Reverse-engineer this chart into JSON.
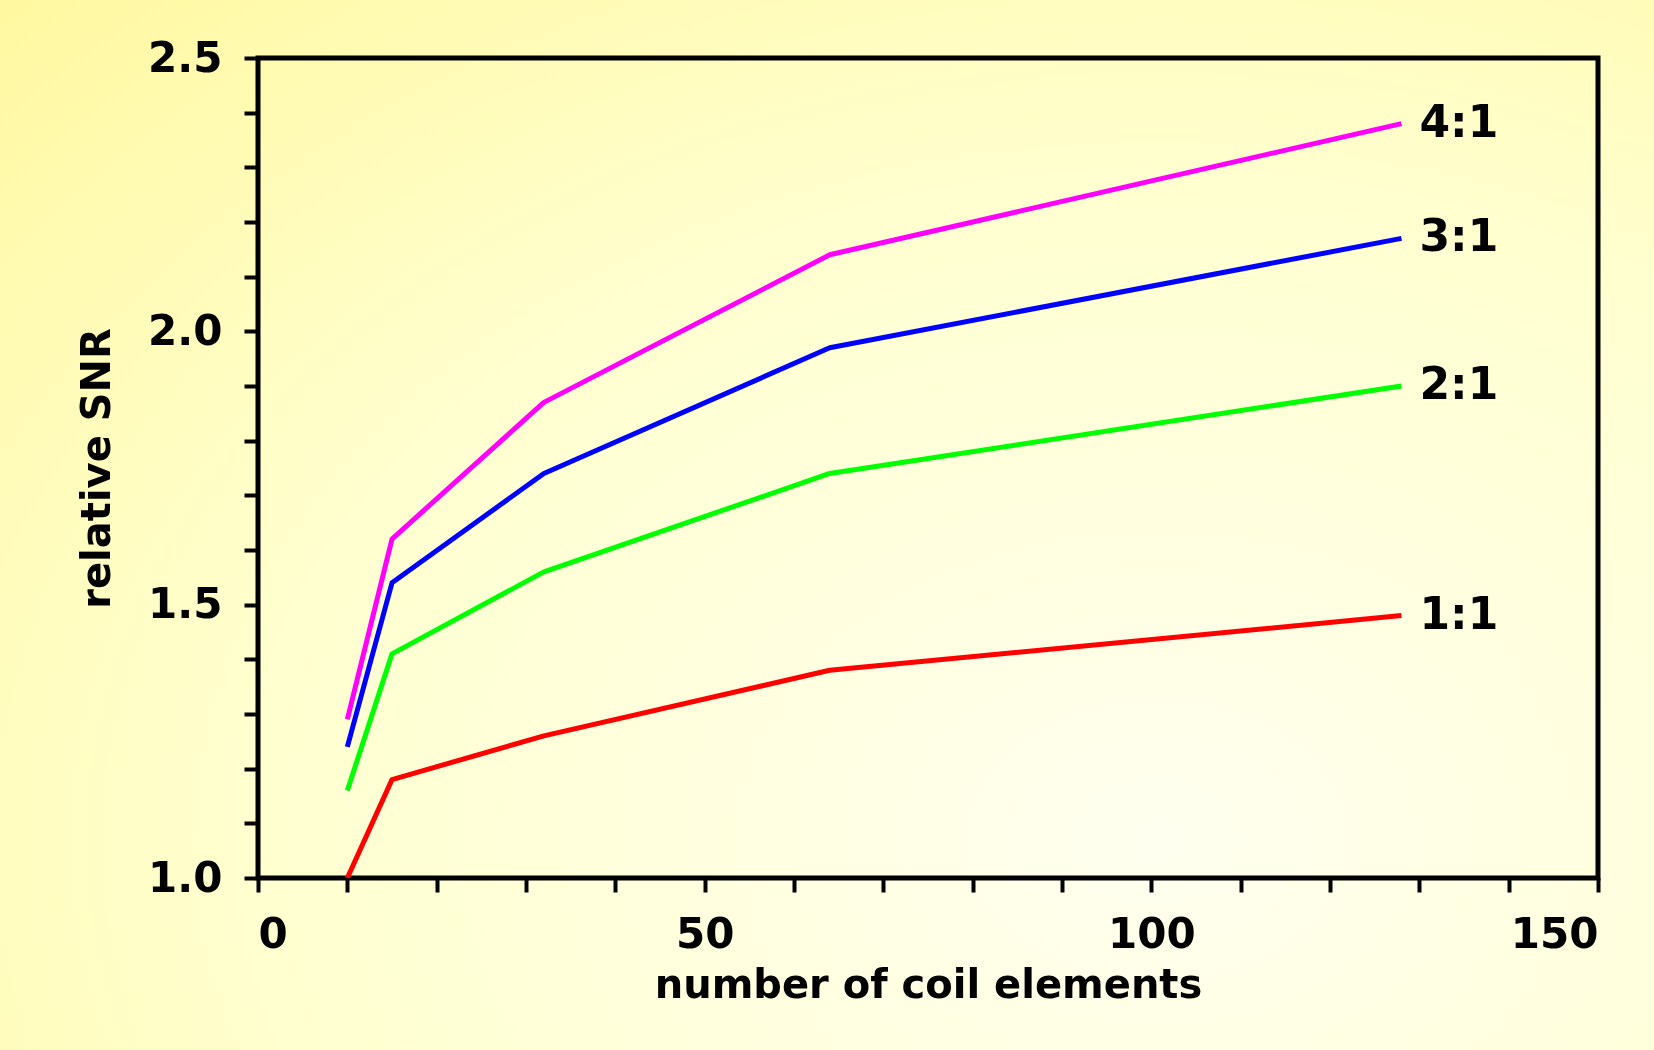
{
  "chart_data": {
    "type": "line",
    "xlabel": "number of coil elements",
    "ylabel": "relative SNR",
    "x": [
      10,
      15,
      32,
      64,
      128
    ],
    "series": [
      {
        "name": "1:1",
        "color": "#ff0000",
        "values": [
          1.0,
          1.18,
          1.26,
          1.38,
          1.48
        ]
      },
      {
        "name": "2:1",
        "color": "#00ff00",
        "values": [
          1.16,
          1.41,
          1.56,
          1.74,
          1.9
        ]
      },
      {
        "name": "3:1",
        "color": "#0000ff",
        "values": [
          1.24,
          1.54,
          1.74,
          1.97,
          2.17
        ]
      },
      {
        "name": "4:1",
        "color": "#ff00ff",
        "values": [
          1.29,
          1.62,
          1.87,
          2.14,
          2.38
        ]
      }
    ],
    "xlim": [
      0,
      150
    ],
    "xticks": [
      0,
      {
        "value": 10,
        "label": null
      },
      {
        "value": 20,
        "label": null
      },
      {
        "value": 30,
        "label": null
      },
      {
        "value": 40,
        "label": null
      },
      50,
      {
        "value": 60,
        "label": null
      },
      {
        "value": 70,
        "label": null
      },
      {
        "value": 80,
        "label": null
      },
      {
        "value": 90,
        "label": null
      },
      100,
      {
        "value": 110,
        "label": null
      },
      {
        "value": 120,
        "label": null
      },
      {
        "value": 130,
        "label": null
      },
      {
        "value": 140,
        "label": null
      },
      150
    ],
    "ylim": [
      1.0,
      2.5
    ],
    "yticks": [
      {
        "value": 1.0,
        "label": "1.0"
      },
      {
        "value": 1.1,
        "label": null
      },
      {
        "value": 1.2,
        "label": null
      },
      {
        "value": 1.3,
        "label": null
      },
      {
        "value": 1.4,
        "label": null
      },
      1.5,
      {
        "value": 1.6,
        "label": null
      },
      {
        "value": 1.7,
        "label": null
      },
      {
        "value": 1.8,
        "label": null
      },
      {
        "value": 1.9,
        "label": null
      },
      {
        "value": 2.0,
        "label": "2.0"
      },
      {
        "value": 2.1,
        "label": null
      },
      {
        "value": 2.2,
        "label": null
      },
      {
        "value": 2.3,
        "label": null
      },
      {
        "value": 2.4,
        "label": null
      },
      2.5
    ],
    "grid": false,
    "marker": "none",
    "line_style": "solid"
  }
}
